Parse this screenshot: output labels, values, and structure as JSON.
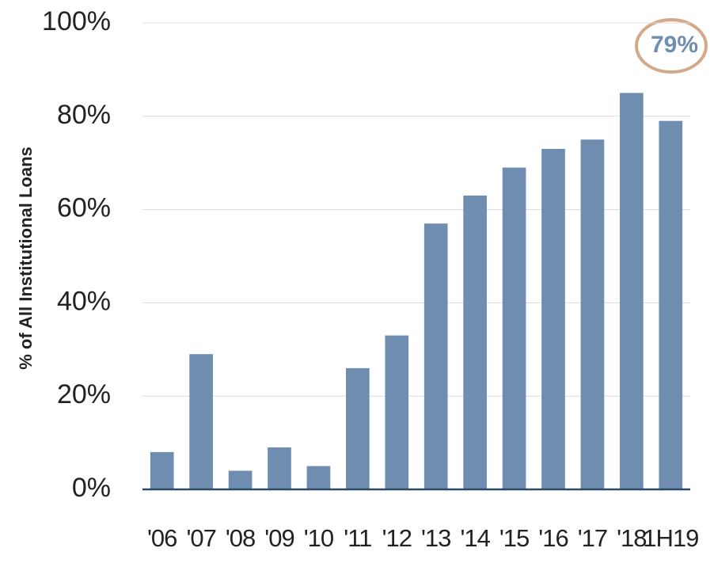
{
  "chart_data": {
    "type": "bar",
    "y_axis_label": "% of All Institutional Loans",
    "annotation": "79%",
    "categories": [
      "'06",
      "'07",
      "'08",
      "'09",
      "'10",
      "'11",
      "'12",
      "'13",
      "'14",
      "'15",
      "'16",
      "'17",
      "'18",
      "1H19"
    ],
    "values": [
      8,
      29,
      4,
      9,
      5,
      26,
      33,
      57,
      63,
      69,
      73,
      75,
      85,
      79
    ],
    "color": "#6e8db1",
    "ylim": [
      0,
      100
    ],
    "yticks": [
      {
        "value": 0,
        "label": "0%"
      },
      {
        "value": 20,
        "label": "20%"
      },
      {
        "value": 40,
        "label": "40%"
      },
      {
        "value": 60,
        "label": "60%"
      },
      {
        "value": 80,
        "label": "80%"
      },
      {
        "value": 100,
        "label": "100%"
      }
    ],
    "grid": true
  }
}
